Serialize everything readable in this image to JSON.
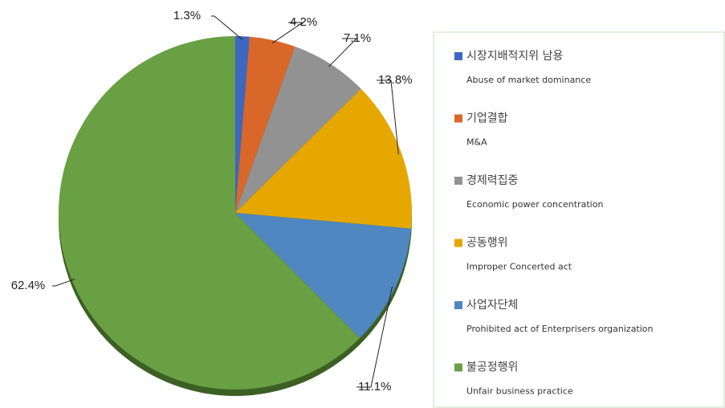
{
  "chart_data": {
    "type": "pie",
    "categories": [
      "시장지배적지위 남용",
      "기업결합",
      "경제력집중",
      "공동행위",
      "사업자단체",
      "불공정행위"
    ],
    "categories_en": [
      "Abuse of market dominance",
      "M&A",
      "Economic power concentration",
      "Improper Concerted act",
      "Prohibited act of Enterprisers organization",
      "Unfair business practice"
    ],
    "values": [
      1.3,
      4.2,
      7.1,
      13.8,
      11.1,
      62.4
    ],
    "value_labels": [
      "1.3%",
      "4.2%",
      "7.1%",
      "13.8%",
      "11.1%",
      "62.4%"
    ],
    "colors": [
      "#3d67c0",
      "#d9672a",
      "#929292",
      "#e5a700",
      "#4f87c0",
      "#69a043"
    ]
  }
}
